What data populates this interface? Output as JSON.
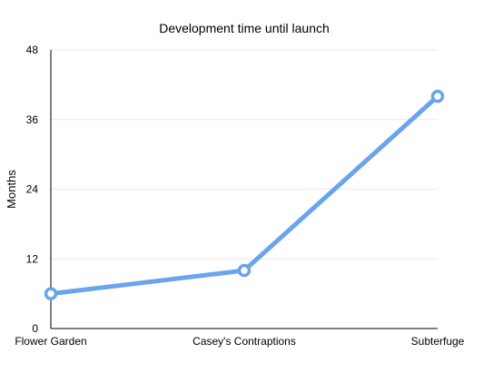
{
  "chart_data": {
    "type": "line",
    "title": "Development time until launch",
    "xlabel": "",
    "ylabel": "Months",
    "categories": [
      "Flower Garden",
      "Casey's Contraptions",
      "Subterfuge"
    ],
    "series": [
      {
        "values": [
          6,
          10,
          40
        ],
        "color": "#6aa4ec"
      }
    ],
    "ylim": [
      0,
      48
    ],
    "yticks": [
      0,
      12,
      24,
      36,
      48
    ],
    "grid": true,
    "legend": "none"
  }
}
